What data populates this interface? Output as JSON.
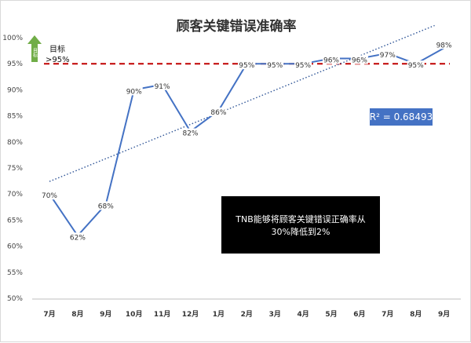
{
  "chart_data": {
    "type": "line",
    "title": "顾客关键错误准确率",
    "categories": [
      "7月",
      "8月",
      "9月",
      "10月",
      "11月",
      "12月",
      "1月",
      "2月",
      "3月",
      "4月",
      "5月",
      "6月",
      "7月",
      "8月",
      "9月"
    ],
    "series": [
      {
        "values": [
          70,
          62,
          68,
          90,
          91,
          82,
          86,
          95,
          95,
          95,
          96,
          96,
          97,
          95,
          98
        ]
      }
    ],
    "data_labels": [
      "70%",
      "62%",
      "68%",
      "90%",
      "91%",
      "82%",
      "86%",
      "95%",
      "95%",
      "95%",
      "96%",
      "96%",
      "97%",
      "95%",
      "98%"
    ],
    "y_ticks": [
      "50%",
      "55%",
      "60%",
      "65%",
      "70%",
      "75%",
      "80%",
      "85%",
      "90%",
      "95%",
      "100%"
    ],
    "ylim": [
      50,
      100
    ],
    "grid": false,
    "target": {
      "value": 95,
      "label_line1": "目标",
      "label_line2": ">95%",
      "arrow_text": "目标"
    },
    "trendline": {
      "type": "linear",
      "style": "dotted",
      "r2_label": "R² = 0.68493"
    },
    "annotation": {
      "line1": "TNB能够将顾客关键错误正确率从",
      "line2": "30%降低到2%"
    },
    "colors": {
      "line": "#4472C4",
      "trend": "#2F5597",
      "target": "#C00000",
      "arrow": "#70AD47",
      "r2_box": "#4472C4",
      "note_box": "#000000",
      "axis": "#bfbfbf"
    }
  }
}
